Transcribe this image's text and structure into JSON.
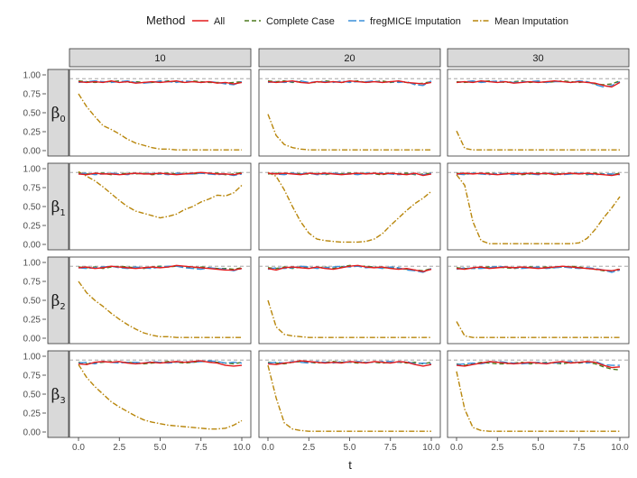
{
  "chart_data": {
    "type": "line",
    "legend": {
      "title": "Method",
      "position": "top"
    },
    "xlabel": "t",
    "ylabel": "",
    "xlim": [
      0,
      10
    ],
    "ylim": [
      0,
      1
    ],
    "x_ticks": [
      "0.0",
      "2.5",
      "5.0",
      "7.5",
      "10.0"
    ],
    "y_ticks": [
      "0.00",
      "0.25",
      "0.50",
      "0.75",
      "1.00"
    ],
    "reference_line": 0.95,
    "columns": [
      "10",
      "20",
      "30"
    ],
    "rows": [
      {
        "base": "β",
        "sub": "0"
      },
      {
        "base": "β",
        "sub": "1"
      },
      {
        "base": "β",
        "sub": "2"
      },
      {
        "base": "β",
        "sub": "3"
      }
    ],
    "series": [
      {
        "name": "All",
        "color": "#e41a1c",
        "dash": "solid"
      },
      {
        "name": "Complete Case",
        "color": "#4d7a1f",
        "dash": "dashed"
      },
      {
        "name": "fregMICE Imputation",
        "color": "#3a8fd9",
        "dash": "longdash"
      },
      {
        "name": "Mean Imputation",
        "color": "#b8860b",
        "dash": "dotdash"
      }
    ],
    "x": [
      0,
      0.5,
      1,
      1.5,
      2,
      2.5,
      3,
      3.5,
      4,
      4.5,
      5,
      5.5,
      6,
      6.5,
      7,
      7.5,
      8,
      8.5,
      9,
      9.5,
      10
    ],
    "panels": [
      {
        "row": 0,
        "col": 0,
        "All": [
          0.91,
          0.9,
          0.91,
          0.9,
          0.92,
          0.9,
          0.91,
          0.89,
          0.9,
          0.91,
          0.9,
          0.91,
          0.92,
          0.9,
          0.91,
          0.9,
          0.91,
          0.89,
          0.9,
          0.88,
          0.9
        ],
        "Complete Case": [
          0.92,
          0.91,
          0.9,
          0.91,
          0.91,
          0.92,
          0.9,
          0.91,
          0.9,
          0.9,
          0.91,
          0.92,
          0.91,
          0.9,
          0.92,
          0.91,
          0.9,
          0.9,
          0.89,
          0.9,
          0.91
        ],
        "fregMICE Imputation": [
          0.9,
          0.91,
          0.92,
          0.91,
          0.9,
          0.91,
          0.92,
          0.9,
          0.89,
          0.9,
          0.92,
          0.91,
          0.9,
          0.92,
          0.91,
          0.9,
          0.91,
          0.9,
          0.88,
          0.87,
          0.91
        ],
        "Mean Imputation": [
          0.75,
          0.58,
          0.45,
          0.33,
          0.28,
          0.22,
          0.15,
          0.1,
          0.07,
          0.04,
          0.02,
          0.02,
          0.01,
          0.01,
          0.01,
          0.01,
          0.01,
          0.01,
          0.01,
          0.01,
          0.01
        ]
      },
      {
        "row": 0,
        "col": 1,
        "All": [
          0.91,
          0.9,
          0.91,
          0.92,
          0.9,
          0.89,
          0.91,
          0.9,
          0.91,
          0.9,
          0.92,
          0.91,
          0.9,
          0.91,
          0.9,
          0.91,
          0.92,
          0.9,
          0.89,
          0.88,
          0.9
        ],
        "Complete Case": [
          0.92,
          0.91,
          0.92,
          0.9,
          0.91,
          0.9,
          0.9,
          0.92,
          0.91,
          0.9,
          0.91,
          0.92,
          0.9,
          0.91,
          0.92,
          0.9,
          0.91,
          0.9,
          0.88,
          0.89,
          0.91
        ],
        "fregMICE Imputation": [
          0.9,
          0.91,
          0.9,
          0.91,
          0.92,
          0.9,
          0.91,
          0.91,
          0.9,
          0.92,
          0.9,
          0.91,
          0.91,
          0.92,
          0.9,
          0.91,
          0.9,
          0.91,
          0.87,
          0.86,
          0.92
        ],
        "Mean Imputation": [
          0.48,
          0.2,
          0.08,
          0.04,
          0.02,
          0.01,
          0.01,
          0.01,
          0.01,
          0.01,
          0.01,
          0.01,
          0.01,
          0.01,
          0.01,
          0.01,
          0.01,
          0.01,
          0.01,
          0.01,
          0.01
        ]
      },
      {
        "row": 0,
        "col": 2,
        "All": [
          0.9,
          0.91,
          0.9,
          0.92,
          0.91,
          0.9,
          0.91,
          0.89,
          0.9,
          0.91,
          0.9,
          0.91,
          0.92,
          0.91,
          0.9,
          0.91,
          0.9,
          0.89,
          0.86,
          0.84,
          0.9
        ],
        "Complete Case": [
          0.91,
          0.9,
          0.91,
          0.91,
          0.92,
          0.91,
          0.9,
          0.91,
          0.92,
          0.9,
          0.91,
          0.9,
          0.91,
          0.92,
          0.91,
          0.9,
          0.91,
          0.88,
          0.87,
          0.88,
          0.92
        ],
        "fregMICE Imputation": [
          0.9,
          0.91,
          0.92,
          0.9,
          0.91,
          0.92,
          0.91,
          0.9,
          0.91,
          0.91,
          0.92,
          0.9,
          0.91,
          0.91,
          0.9,
          0.92,
          0.91,
          0.87,
          0.84,
          0.86,
          0.91
        ],
        "Mean Imputation": [
          0.26,
          0.03,
          0.01,
          0.01,
          0.01,
          0.01,
          0.01,
          0.01,
          0.01,
          0.01,
          0.01,
          0.01,
          0.01,
          0.01,
          0.01,
          0.01,
          0.01,
          0.01,
          0.01,
          0.01,
          0.01
        ]
      },
      {
        "row": 1,
        "col": 0,
        "All": [
          0.93,
          0.92,
          0.94,
          0.93,
          0.93,
          0.92,
          0.93,
          0.94,
          0.93,
          0.93,
          0.94,
          0.93,
          0.92,
          0.93,
          0.94,
          0.95,
          0.94,
          0.93,
          0.93,
          0.92,
          0.94
        ],
        "Complete Case": [
          0.94,
          0.93,
          0.93,
          0.94,
          0.92,
          0.93,
          0.94,
          0.93,
          0.94,
          0.92,
          0.93,
          0.94,
          0.93,
          0.94,
          0.93,
          0.94,
          0.93,
          0.94,
          0.92,
          0.93,
          0.95
        ],
        "fregMICE Imputation": [
          0.93,
          0.94,
          0.92,
          0.93,
          0.94,
          0.93,
          0.92,
          0.94,
          0.93,
          0.94,
          0.93,
          0.92,
          0.94,
          0.93,
          0.93,
          0.94,
          0.93,
          0.92,
          0.93,
          0.91,
          0.93
        ],
        "Mean Imputation": [
          0.96,
          0.9,
          0.84,
          0.76,
          0.67,
          0.58,
          0.5,
          0.44,
          0.41,
          0.38,
          0.35,
          0.37,
          0.4,
          0.46,
          0.5,
          0.56,
          0.6,
          0.65,
          0.64,
          0.68,
          0.78
        ]
      },
      {
        "row": 1,
        "col": 1,
        "All": [
          0.94,
          0.93,
          0.94,
          0.93,
          0.92,
          0.94,
          0.93,
          0.94,
          0.93,
          0.92,
          0.93,
          0.94,
          0.93,
          0.94,
          0.93,
          0.94,
          0.93,
          0.92,
          0.94,
          0.91,
          0.93
        ],
        "Complete Case": [
          0.93,
          0.94,
          0.93,
          0.94,
          0.93,
          0.93,
          0.94,
          0.92,
          0.94,
          0.93,
          0.94,
          0.93,
          0.94,
          0.93,
          0.92,
          0.94,
          0.93,
          0.94,
          0.92,
          0.93,
          0.94
        ],
        "fregMICE Imputation": [
          0.94,
          0.93,
          0.92,
          0.94,
          0.93,
          0.94,
          0.92,
          0.93,
          0.94,
          0.93,
          0.93,
          0.92,
          0.94,
          0.93,
          0.94,
          0.93,
          0.92,
          0.93,
          0.93,
          0.92,
          0.94
        ],
        "Mean Imputation": [
          0.95,
          0.9,
          0.72,
          0.5,
          0.3,
          0.15,
          0.07,
          0.05,
          0.04,
          0.03,
          0.03,
          0.03,
          0.04,
          0.07,
          0.14,
          0.25,
          0.35,
          0.45,
          0.54,
          0.61,
          0.7
        ]
      },
      {
        "row": 1,
        "col": 2,
        "All": [
          0.93,
          0.94,
          0.93,
          0.94,
          0.93,
          0.92,
          0.93,
          0.94,
          0.93,
          0.94,
          0.93,
          0.94,
          0.92,
          0.93,
          0.94,
          0.93,
          0.94,
          0.93,
          0.92,
          0.91,
          0.93
        ],
        "Complete Case": [
          0.94,
          0.93,
          0.94,
          0.93,
          0.94,
          0.93,
          0.94,
          0.93,
          0.92,
          0.93,
          0.94,
          0.93,
          0.94,
          0.93,
          0.93,
          0.94,
          0.92,
          0.94,
          0.93,
          0.92,
          0.94
        ],
        "fregMICE Imputation": [
          0.93,
          0.92,
          0.94,
          0.93,
          0.92,
          0.94,
          0.93,
          0.92,
          0.94,
          0.93,
          0.92,
          0.94,
          0.93,
          0.92,
          0.93,
          0.94,
          0.93,
          0.92,
          0.93,
          0.93,
          0.92
        ],
        "Mean Imputation": [
          0.92,
          0.78,
          0.3,
          0.05,
          0.01,
          0.01,
          0.01,
          0.01,
          0.01,
          0.01,
          0.01,
          0.01,
          0.01,
          0.01,
          0.01,
          0.02,
          0.08,
          0.2,
          0.35,
          0.48,
          0.63
        ]
      },
      {
        "row": 2,
        "col": 0,
        "All": [
          0.93,
          0.94,
          0.92,
          0.93,
          0.95,
          0.94,
          0.93,
          0.92,
          0.93,
          0.94,
          0.93,
          0.94,
          0.96,
          0.95,
          0.94,
          0.93,
          0.92,
          0.91,
          0.9,
          0.9,
          0.92
        ],
        "Complete Case": [
          0.94,
          0.93,
          0.94,
          0.92,
          0.94,
          0.95,
          0.94,
          0.93,
          0.92,
          0.94,
          0.95,
          0.94,
          0.95,
          0.94,
          0.93,
          0.94,
          0.93,
          0.92,
          0.92,
          0.91,
          0.93
        ],
        "fregMICE Imputation": [
          0.93,
          0.92,
          0.93,
          0.94,
          0.95,
          0.93,
          0.92,
          0.94,
          0.93,
          0.92,
          0.94,
          0.95,
          0.95,
          0.93,
          0.92,
          0.91,
          0.93,
          0.92,
          0.91,
          0.89,
          0.92
        ],
        "Mean Imputation": [
          0.75,
          0.6,
          0.5,
          0.42,
          0.33,
          0.25,
          0.18,
          0.12,
          0.07,
          0.04,
          0.02,
          0.02,
          0.01,
          0.01,
          0.01,
          0.01,
          0.01,
          0.01,
          0.01,
          0.01,
          0.01
        ]
      },
      {
        "row": 2,
        "col": 1,
        "All": [
          0.92,
          0.9,
          0.93,
          0.94,
          0.93,
          0.92,
          0.94,
          0.92,
          0.91,
          0.93,
          0.95,
          0.96,
          0.94,
          0.93,
          0.94,
          0.92,
          0.91,
          0.92,
          0.9,
          0.88,
          0.91
        ],
        "Complete Case": [
          0.93,
          0.92,
          0.94,
          0.92,
          0.94,
          0.93,
          0.93,
          0.94,
          0.92,
          0.94,
          0.96,
          0.95,
          0.95,
          0.94,
          0.93,
          0.93,
          0.92,
          0.91,
          0.9,
          0.89,
          0.92
        ],
        "fregMICE Imputation": [
          0.91,
          0.93,
          0.92,
          0.93,
          0.95,
          0.94,
          0.92,
          0.93,
          0.94,
          0.95,
          0.94,
          0.95,
          0.93,
          0.94,
          0.92,
          0.94,
          0.93,
          0.9,
          0.89,
          0.87,
          0.92
        ],
        "Mean Imputation": [
          0.5,
          0.15,
          0.05,
          0.03,
          0.02,
          0.01,
          0.01,
          0.01,
          0.01,
          0.01,
          0.01,
          0.01,
          0.01,
          0.01,
          0.01,
          0.01,
          0.01,
          0.01,
          0.01,
          0.01,
          0.01
        ]
      },
      {
        "row": 2,
        "col": 2,
        "All": [
          0.92,
          0.91,
          0.93,
          0.94,
          0.92,
          0.93,
          0.94,
          0.93,
          0.94,
          0.93,
          0.92,
          0.93,
          0.94,
          0.95,
          0.94,
          0.93,
          0.92,
          0.91,
          0.9,
          0.89,
          0.91
        ],
        "Complete Case": [
          0.93,
          0.92,
          0.92,
          0.93,
          0.94,
          0.94,
          0.93,
          0.92,
          0.93,
          0.94,
          0.93,
          0.94,
          0.93,
          0.94,
          0.95,
          0.94,
          0.92,
          0.91,
          0.89,
          0.88,
          0.92
        ],
        "fregMICE Imputation": [
          0.91,
          0.93,
          0.92,
          0.92,
          0.93,
          0.95,
          0.94,
          0.93,
          0.92,
          0.93,
          0.94,
          0.92,
          0.93,
          0.94,
          0.93,
          0.92,
          0.93,
          0.92,
          0.9,
          0.87,
          0.9
        ],
        "Mean Imputation": [
          0.22,
          0.03,
          0.01,
          0.01,
          0.01,
          0.01,
          0.01,
          0.01,
          0.01,
          0.01,
          0.01,
          0.01,
          0.01,
          0.01,
          0.01,
          0.01,
          0.01,
          0.01,
          0.01,
          0.01,
          0.01
        ]
      },
      {
        "row": 3,
        "col": 0,
        "All": [
          0.9,
          0.89,
          0.92,
          0.93,
          0.92,
          0.93,
          0.91,
          0.9,
          0.91,
          0.92,
          0.91,
          0.92,
          0.93,
          0.92,
          0.93,
          0.94,
          0.92,
          0.91,
          0.88,
          0.87,
          0.88
        ],
        "Complete Case": [
          0.92,
          0.9,
          0.91,
          0.92,
          0.93,
          0.92,
          0.92,
          0.91,
          0.9,
          0.91,
          0.92,
          0.93,
          0.92,
          0.91,
          0.92,
          0.93,
          0.93,
          0.92,
          0.91,
          0.9,
          0.92
        ],
        "fregMICE Imputation": [
          0.91,
          0.92,
          0.9,
          0.93,
          0.92,
          0.91,
          0.92,
          0.92,
          0.91,
          0.93,
          0.92,
          0.91,
          0.92,
          0.93,
          0.92,
          0.93,
          0.94,
          0.93,
          0.91,
          0.92,
          0.91
        ],
        "Mean Imputation": [
          0.89,
          0.72,
          0.6,
          0.5,
          0.4,
          0.33,
          0.27,
          0.21,
          0.16,
          0.13,
          0.11,
          0.09,
          0.08,
          0.07,
          0.06,
          0.05,
          0.04,
          0.04,
          0.05,
          0.09,
          0.15
        ]
      },
      {
        "row": 3,
        "col": 1,
        "All": [
          0.9,
          0.89,
          0.91,
          0.92,
          0.94,
          0.93,
          0.92,
          0.91,
          0.92,
          0.91,
          0.93,
          0.92,
          0.91,
          0.93,
          0.92,
          0.91,
          0.93,
          0.92,
          0.89,
          0.87,
          0.89
        ],
        "Complete Case": [
          0.92,
          0.91,
          0.9,
          0.92,
          0.93,
          0.92,
          0.91,
          0.92,
          0.93,
          0.92,
          0.92,
          0.91,
          0.92,
          0.92,
          0.91,
          0.92,
          0.92,
          0.91,
          0.92,
          0.9,
          0.92
        ],
        "fregMICE Imputation": [
          0.91,
          0.92,
          0.91,
          0.93,
          0.92,
          0.91,
          0.93,
          0.92,
          0.91,
          0.93,
          0.92,
          0.93,
          0.92,
          0.92,
          0.93,
          0.93,
          0.92,
          0.93,
          0.9,
          0.91,
          0.9
        ],
        "Mean Imputation": [
          0.88,
          0.45,
          0.12,
          0.04,
          0.02,
          0.01,
          0.01,
          0.01,
          0.01,
          0.01,
          0.01,
          0.01,
          0.01,
          0.01,
          0.01,
          0.01,
          0.01,
          0.01,
          0.01,
          0.01,
          0.01
        ]
      },
      {
        "row": 3,
        "col": 2,
        "All": [
          0.88,
          0.87,
          0.89,
          0.91,
          0.93,
          0.92,
          0.91,
          0.9,
          0.91,
          0.92,
          0.91,
          0.9,
          0.92,
          0.93,
          0.91,
          0.92,
          0.93,
          0.92,
          0.88,
          0.85,
          0.86
        ],
        "Complete Case": [
          0.9,
          0.88,
          0.9,
          0.92,
          0.91,
          0.9,
          0.9,
          0.91,
          0.92,
          0.9,
          0.91,
          0.92,
          0.91,
          0.9,
          0.92,
          0.91,
          0.92,
          0.9,
          0.86,
          0.83,
          0.82
        ],
        "fregMICE Imputation": [
          0.89,
          0.9,
          0.91,
          0.9,
          0.92,
          0.93,
          0.92,
          0.91,
          0.9,
          0.91,
          0.92,
          0.91,
          0.91,
          0.92,
          0.93,
          0.92,
          0.91,
          0.93,
          0.89,
          0.88,
          0.88
        ],
        "Mean Imputation": [
          0.8,
          0.3,
          0.06,
          0.02,
          0.01,
          0.01,
          0.01,
          0.01,
          0.01,
          0.01,
          0.01,
          0.01,
          0.01,
          0.01,
          0.01,
          0.01,
          0.01,
          0.01,
          0.01,
          0.01,
          0.01
        ]
      }
    ]
  }
}
